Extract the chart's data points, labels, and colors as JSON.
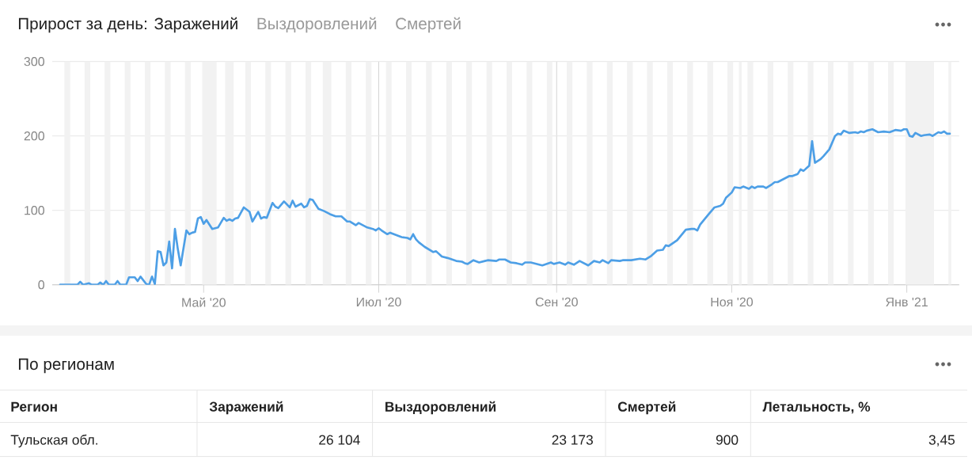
{
  "chart_data": [
    {
      "type": "line",
      "title": "Прирост за день: Заражений",
      "annotations": [
        "Выздоровлений",
        "Смертей"
      ],
      "x": [
        "2020-03-12",
        "2020-03-18",
        "2020-03-19",
        "2020-03-20",
        "2020-03-22",
        "2020-03-23",
        "2020-03-25",
        "2020-03-26",
        "2020-03-27",
        "2020-03-28",
        "2020-03-29",
        "2020-03-31",
        "2020-04-01",
        "2020-04-02",
        "2020-04-04",
        "2020-04-05",
        "2020-04-07",
        "2020-04-08",
        "2020-04-09",
        "2020-04-11",
        "2020-04-12",
        "2020-04-13",
        "2020-04-14",
        "2020-04-15",
        "2020-04-16",
        "2020-04-17",
        "2020-04-18",
        "2020-04-19",
        "2020-04-20",
        "2020-04-21",
        "2020-04-22",
        "2020-04-23",
        "2020-04-25",
        "2020-04-26",
        "2020-04-27",
        "2020-04-28",
        "2020-04-29",
        "2020-04-30",
        "2020-05-01",
        "2020-05-02",
        "2020-05-04",
        "2020-05-06",
        "2020-05-08",
        "2020-05-09",
        "2020-05-10",
        "2020-05-11",
        "2020-05-12",
        "2020-05-13",
        "2020-05-15",
        "2020-05-16",
        "2020-05-17",
        "2020-05-18",
        "2020-05-20",
        "2020-05-21",
        "2020-05-22",
        "2020-05-23",
        "2020-05-25",
        "2020-05-26",
        "2020-05-27",
        "2020-05-29",
        "2020-05-31",
        "2020-06-01",
        "2020-06-02",
        "2020-06-04",
        "2020-06-05",
        "2020-06-06",
        "2020-06-07",
        "2020-06-08",
        "2020-06-10",
        "2020-06-12",
        "2020-06-14",
        "2020-06-16",
        "2020-06-18",
        "2020-06-20",
        "2020-06-21",
        "2020-06-23",
        "2020-06-24",
        "2020-06-27",
        "2020-06-29",
        "2020-06-30",
        "2020-07-01",
        "2020-07-02",
        "2020-07-04",
        "2020-07-05",
        "2020-07-07",
        "2020-07-09",
        "2020-07-11",
        "2020-07-12",
        "2020-07-13",
        "2020-07-14",
        "2020-07-15",
        "2020-07-17",
        "2020-07-20",
        "2020-07-21",
        "2020-07-23",
        "2020-07-25",
        "2020-07-28",
        "2020-07-30",
        "2020-07-31",
        "2020-08-01",
        "2020-08-03",
        "2020-08-05",
        "2020-08-07",
        "2020-08-08",
        "2020-08-11",
        "2020-08-12",
        "2020-08-14",
        "2020-08-16",
        "2020-08-18",
        "2020-08-20",
        "2020-08-21",
        "2020-08-23",
        "2020-08-27",
        "2020-08-30",
        "2020-08-31",
        "2020-09-02",
        "2020-09-04",
        "2020-09-05",
        "2020-09-07",
        "2020-09-09",
        "2020-09-12",
        "2020-09-14",
        "2020-09-16",
        "2020-09-17",
        "2020-09-19",
        "2020-09-20",
        "2020-09-23",
        "2020-09-24",
        "2020-09-27",
        "2020-09-30",
        "2020-10-02",
        "2020-10-04",
        "2020-10-06",
        "2020-10-08",
        "2020-10-09",
        "2020-10-10",
        "2020-10-13",
        "2020-10-16",
        "2020-10-18",
        "2020-10-19",
        "2020-10-20",
        "2020-10-21",
        "2020-10-24",
        "2020-10-26",
        "2020-10-28",
        "2020-10-29",
        "2020-10-30",
        "2020-11-01",
        "2020-11-02",
        "2020-11-04",
        "2020-11-05",
        "2020-11-07",
        "2020-11-08",
        "2020-11-09",
        "2020-11-10",
        "2020-11-12",
        "2020-11-13",
        "2020-11-15",
        "2020-11-16",
        "2020-11-17",
        "2020-11-19",
        "2020-11-21",
        "2020-11-22",
        "2020-11-24",
        "2020-11-25",
        "2020-11-26",
        "2020-11-28",
        "2020-11-29",
        "2020-11-30",
        "2020-12-02",
        "2020-12-03",
        "2020-12-05",
        "2020-12-07",
        "2020-12-08",
        "2020-12-09",
        "2020-12-10",
        "2020-12-12",
        "2020-12-14",
        "2020-12-15",
        "2020-12-16",
        "2020-12-17",
        "2020-12-18",
        "2020-12-20",
        "2020-12-22",
        "2020-12-24",
        "2020-12-26",
        "2020-12-28",
        "2020-12-30",
        "2020-12-31",
        "2021-01-01",
        "2021-01-02",
        "2021-01-03",
        "2021-01-04",
        "2021-01-06",
        "2021-01-07",
        "2021-01-09",
        "2021-01-10",
        "2021-01-12",
        "2021-01-13",
        "2021-01-14",
        "2021-01-15",
        "2021-01-16"
      ],
      "values": [
        0,
        0,
        4,
        0,
        2,
        0,
        0,
        3,
        0,
        5,
        0,
        0,
        5,
        0,
        0,
        10,
        10,
        5,
        11,
        1,
        0,
        11,
        1,
        45,
        44,
        26,
        30,
        58,
        22,
        75,
        48,
        26,
        73,
        68,
        70,
        71,
        89,
        91,
        82,
        87,
        75,
        77,
        90,
        86,
        88,
        86,
        89,
        90,
        104,
        101,
        98,
        85,
        98,
        89,
        91,
        90,
        110,
        105,
        103,
        112,
        104,
        113,
        105,
        109,
        104,
        106,
        115,
        114,
        102,
        99,
        95,
        92,
        92,
        85,
        85,
        80,
        83,
        77,
        75,
        73,
        76,
        73,
        68,
        70,
        67,
        64,
        63,
        61,
        68,
        61,
        57,
        51,
        44,
        45,
        38,
        36,
        32,
        31,
        29,
        28,
        33,
        30,
        32,
        33,
        32,
        34,
        34,
        30,
        29,
        27,
        30,
        30,
        26,
        30,
        28,
        30,
        27,
        30,
        27,
        32,
        26,
        32,
        30,
        33,
        29,
        33,
        32,
        33,
        33,
        35,
        34,
        39,
        46,
        47,
        53,
        52,
        60,
        74,
        75,
        75,
        73,
        81,
        95,
        104,
        106,
        109,
        117,
        124,
        131,
        130,
        132,
        129,
        132,
        130,
        132,
        132,
        130,
        135,
        138,
        138,
        142,
        146,
        146,
        149,
        155,
        153,
        160,
        193,
        164,
        169,
        173,
        182,
        200,
        203,
        202,
        207,
        204,
        205,
        204,
        206,
        205,
        207,
        209,
        205,
        206,
        205,
        208,
        207,
        209,
        209,
        200,
        199,
        204,
        200,
        201,
        202,
        200,
        205,
        204,
        206,
        203,
        203
      ],
      "color": "#4d9fe6",
      "xlim": [
        "2020-03-09T06:00",
        "2021-01-19T06:00"
      ],
      "xticks": [
        {
          "value": "2020-05-01",
          "label": "Май '20"
        },
        {
          "value": "2020-07-01",
          "label": "Июл '20"
        },
        {
          "value": "2020-09-01",
          "label": "Сен '20"
        },
        {
          "value": "2020-11-01",
          "label": "Ноя '20"
        },
        {
          "value": "2021-01-01",
          "label": "Янв '21"
        }
      ],
      "ylim": [
        0,
        300
      ],
      "yticks": [
        0,
        100,
        200,
        300
      ],
      "grid": true,
      "bands": [
        {
          "axis": "x",
          "from": "2020-03-13T12:00",
          "to": "2020-03-15T12:00",
          "color": "#f2f2f2"
        },
        {
          "axis": "x",
          "from": "2020-03-20T12:00",
          "to": "2020-03-22T12:00",
          "color": "#f2f2f2"
        },
        {
          "axis": "x",
          "from": "2020-03-27T12:00",
          "to": "2020-03-29T12:00",
          "color": "#f2f2f2"
        },
        {
          "axis": "x",
          "from": "2020-04-03T12:00",
          "to": "2020-04-05T12:00",
          "color": "#f2f2f2"
        },
        {
          "axis": "x",
          "from": "2020-04-10T12:00",
          "to": "2020-04-12T12:00",
          "color": "#f2f2f2"
        },
        {
          "axis": "x",
          "from": "2020-04-17T12:00",
          "to": "2020-04-19T12:00",
          "color": "#f2f2f2"
        },
        {
          "axis": "x",
          "from": "2020-04-24T12:00",
          "to": "2020-04-26T12:00",
          "color": "#f2f2f2"
        },
        {
          "axis": "x",
          "from": "2020-04-30T12:00",
          "to": "2020-05-05T12:00",
          "color": "#f2f2f2"
        },
        {
          "axis": "x",
          "from": "2020-05-08T12:00",
          "to": "2020-05-11T12:00",
          "color": "#f2f2f2"
        },
        {
          "axis": "x",
          "from": "2020-05-15T12:00",
          "to": "2020-05-17T12:00",
          "color": "#f2f2f2"
        },
        {
          "axis": "x",
          "from": "2020-05-22T12:00",
          "to": "2020-05-24T12:00",
          "color": "#f2f2f2"
        },
        {
          "axis": "x",
          "from": "2020-05-29T12:00",
          "to": "2020-05-31T12:00",
          "color": "#f2f2f2"
        },
        {
          "axis": "x",
          "from": "2020-06-05T12:00",
          "to": "2020-06-07T12:00",
          "color": "#f2f2f2"
        },
        {
          "axis": "x",
          "from": "2020-06-11T12:00",
          "to": "2020-06-14T12:00",
          "color": "#f2f2f2"
        },
        {
          "axis": "x",
          "from": "2020-06-19T12:00",
          "to": "2020-06-21T12:00",
          "color": "#f2f2f2"
        },
        {
          "axis": "x",
          "from": "2020-06-26T12:00",
          "to": "2020-06-28T12:00",
          "color": "#f2f2f2"
        },
        {
          "axis": "x",
          "from": "2020-07-03T12:00",
          "to": "2020-07-05T12:00",
          "color": "#f2f2f2"
        },
        {
          "axis": "x",
          "from": "2020-07-10T12:00",
          "to": "2020-07-12T12:00",
          "color": "#f2f2f2"
        },
        {
          "axis": "x",
          "from": "2020-07-17T12:00",
          "to": "2020-07-19T12:00",
          "color": "#f2f2f2"
        },
        {
          "axis": "x",
          "from": "2020-07-24T12:00",
          "to": "2020-07-26T12:00",
          "color": "#f2f2f2"
        },
        {
          "axis": "x",
          "from": "2020-07-31T12:00",
          "to": "2020-08-02T12:00",
          "color": "#f2f2f2"
        },
        {
          "axis": "x",
          "from": "2020-08-07T12:00",
          "to": "2020-08-09T12:00",
          "color": "#f2f2f2"
        },
        {
          "axis": "x",
          "from": "2020-08-14T12:00",
          "to": "2020-08-16T12:00",
          "color": "#f2f2f2"
        },
        {
          "axis": "x",
          "from": "2020-08-21T12:00",
          "to": "2020-08-23T12:00",
          "color": "#f2f2f2"
        },
        {
          "axis": "x",
          "from": "2020-08-28T12:00",
          "to": "2020-08-30T12:00",
          "color": "#f2f2f2"
        },
        {
          "axis": "x",
          "from": "2020-09-04T12:00",
          "to": "2020-09-06T12:00",
          "color": "#f2f2f2"
        },
        {
          "axis": "x",
          "from": "2020-09-11T12:00",
          "to": "2020-09-13T12:00",
          "color": "#f2f2f2"
        },
        {
          "axis": "x",
          "from": "2020-09-18T12:00",
          "to": "2020-09-20T12:00",
          "color": "#f2f2f2"
        },
        {
          "axis": "x",
          "from": "2020-09-25T12:00",
          "to": "2020-09-27T12:00",
          "color": "#f2f2f2"
        },
        {
          "axis": "x",
          "from": "2020-10-02T12:00",
          "to": "2020-10-04T12:00",
          "color": "#f2f2f2"
        },
        {
          "axis": "x",
          "from": "2020-10-09T12:00",
          "to": "2020-10-11T12:00",
          "color": "#f2f2f2"
        },
        {
          "axis": "x",
          "from": "2020-10-16T12:00",
          "to": "2020-10-18T12:00",
          "color": "#f2f2f2"
        },
        {
          "axis": "x",
          "from": "2020-10-23T12:00",
          "to": "2020-10-25T12:00",
          "color": "#f2f2f2"
        },
        {
          "axis": "x",
          "from": "2020-10-30T12:00",
          "to": "2020-11-01T12:00",
          "color": "#f2f2f2"
        },
        {
          "axis": "x",
          "from": "2020-11-03T12:00",
          "to": "2020-11-04T12:00",
          "color": "#f2f2f2"
        },
        {
          "axis": "x",
          "from": "2020-11-06T12:00",
          "to": "2020-11-08T12:00",
          "color": "#f2f2f2"
        },
        {
          "axis": "x",
          "from": "2020-11-13T12:00",
          "to": "2020-11-15T12:00",
          "color": "#f2f2f2"
        },
        {
          "axis": "x",
          "from": "2020-11-20T12:00",
          "to": "2020-11-22T12:00",
          "color": "#f2f2f2"
        },
        {
          "axis": "x",
          "from": "2020-11-27T12:00",
          "to": "2020-11-29T12:00",
          "color": "#f2f2f2"
        },
        {
          "axis": "x",
          "from": "2020-12-04T12:00",
          "to": "2020-12-06T12:00",
          "color": "#f2f2f2"
        },
        {
          "axis": "x",
          "from": "2020-12-11T12:00",
          "to": "2020-12-13T12:00",
          "color": "#f2f2f2"
        },
        {
          "axis": "x",
          "from": "2020-12-18T12:00",
          "to": "2020-12-20T12:00",
          "color": "#f2f2f2"
        },
        {
          "axis": "x",
          "from": "2020-12-25T12:00",
          "to": "2020-12-27T12:00",
          "color": "#f2f2f2"
        },
        {
          "axis": "x",
          "from": "2020-12-31T12:00",
          "to": "2021-01-10T12:00",
          "color": "#f2f2f2"
        },
        {
          "axis": "x",
          "from": "2021-01-15T12:00",
          "to": "2021-01-16T12:00",
          "color": "#f2f2f2"
        }
      ]
    },
    {
      "type": "other",
      "title": "По регионам",
      "annotations": [
        "Регион",
        "Заражений",
        "Выздоровлений",
        "Смертей",
        "Летальность, %",
        "Тульская обл.",
        "26 104",
        "23 173",
        "900",
        "3,45"
      ]
    }
  ]
}
